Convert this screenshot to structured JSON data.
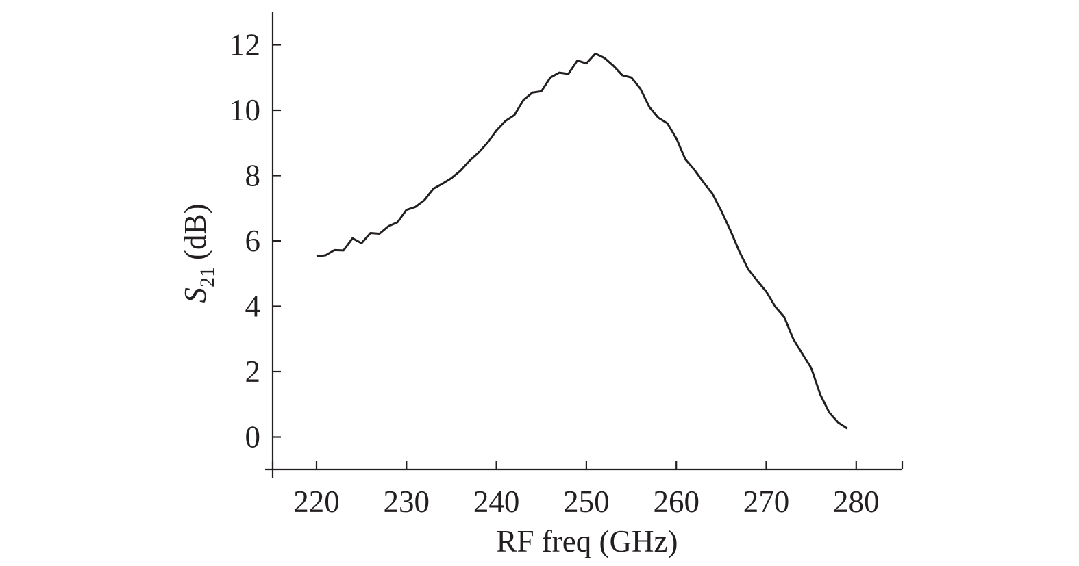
{
  "chart_data": {
    "type": "line",
    "xlabel": "RF freq (GHz)",
    "ylabel": {
      "symbol": "S",
      "subscript": "21",
      "unit": "(dB)"
    },
    "xlim": [
      215,
      285
    ],
    "ylim": [
      -1,
      13
    ],
    "x_ticks": [
      220,
      230,
      240,
      250,
      260,
      270,
      280
    ],
    "y_ticks": [
      0,
      2,
      4,
      6,
      8,
      10,
      12
    ],
    "grid": false,
    "line_color": "#231f20",
    "series": [
      {
        "x": [
          220,
          221,
          222,
          223,
          224,
          225,
          226,
          227,
          228,
          229,
          230,
          231,
          232,
          233,
          234,
          235,
          236,
          237,
          238,
          239,
          240,
          241,
          242,
          243,
          244,
          245,
          246,
          247,
          248,
          249,
          250,
          251,
          252,
          253,
          254,
          255,
          256,
          257,
          258,
          259,
          260,
          261,
          262,
          263,
          264,
          265,
          266,
          267,
          268,
          269,
          270,
          271,
          272,
          273,
          274,
          275,
          276,
          277,
          278,
          279
        ],
        "y": [
          5.53,
          5.56,
          5.72,
          5.71,
          6.08,
          5.93,
          6.24,
          6.22,
          6.45,
          6.57,
          6.95,
          7.04,
          7.25,
          7.6,
          7.75,
          7.92,
          8.15,
          8.45,
          8.7,
          9.0,
          9.38,
          9.67,
          9.85,
          10.31,
          10.54,
          10.58,
          11.0,
          11.15,
          11.11,
          11.52,
          11.43,
          11.73,
          11.6,
          11.36,
          11.07,
          11.0,
          10.66,
          10.1,
          9.77,
          9.6,
          9.14,
          8.5,
          8.18,
          7.8,
          7.45,
          6.92,
          6.33,
          5.68,
          5.13,
          4.78,
          4.45,
          3.99,
          3.67,
          3.0,
          2.55,
          2.11,
          1.3,
          0.75,
          0.44,
          0.26
        ]
      }
    ]
  }
}
